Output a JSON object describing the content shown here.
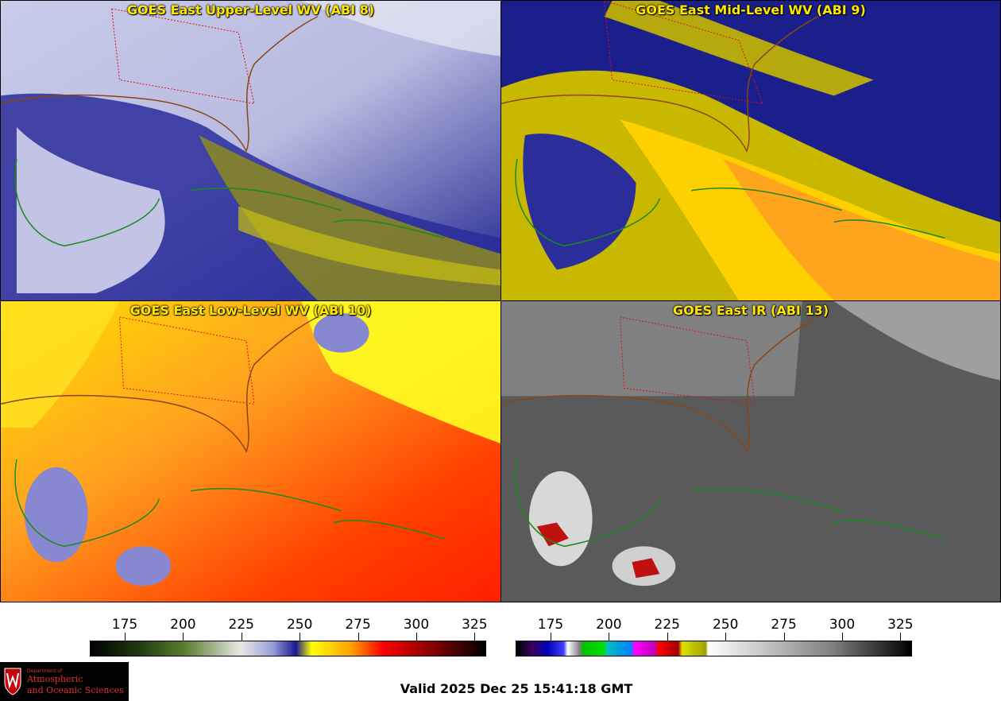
{
  "panels": [
    {
      "title": "GOES East Upper-Level WV (ABI 8)",
      "scheme": "wv"
    },
    {
      "title": "GOES East Mid-Level WV (ABI 9)",
      "scheme": "wv_mid"
    },
    {
      "title": "GOES East Low-Level WV (ABI 10)",
      "scheme": "wv_low"
    },
    {
      "title": "GOES East IR (ABI 13)",
      "scheme": "ir"
    }
  ],
  "colorbar_left": {
    "ticks": [
      "175",
      "200",
      "225",
      "250",
      "275",
      "300",
      "325"
    ],
    "colors": [
      "#000000",
      "#1e3a10",
      "#5b7f2c",
      "#e8e8e8",
      "#9aa0d8",
      "#1a1a8c",
      "#ffff00",
      "#ffa000",
      "#ff0000",
      "#8b0000",
      "#000000"
    ]
  },
  "colorbar_right": {
    "ticks": [
      "175",
      "200",
      "225",
      "250",
      "275",
      "300",
      "325"
    ]
  },
  "logo": {
    "dept": "Department of",
    "line1": "Atmospheric",
    "line2": "and Oceanic Sciences"
  },
  "valid_text": "Valid 2025 Dec 25 15:41:18 GMT",
  "map_colors": {
    "coast": "#1a8a1a",
    "state_border": "#e01010",
    "us_coast": "#8b4513"
  }
}
